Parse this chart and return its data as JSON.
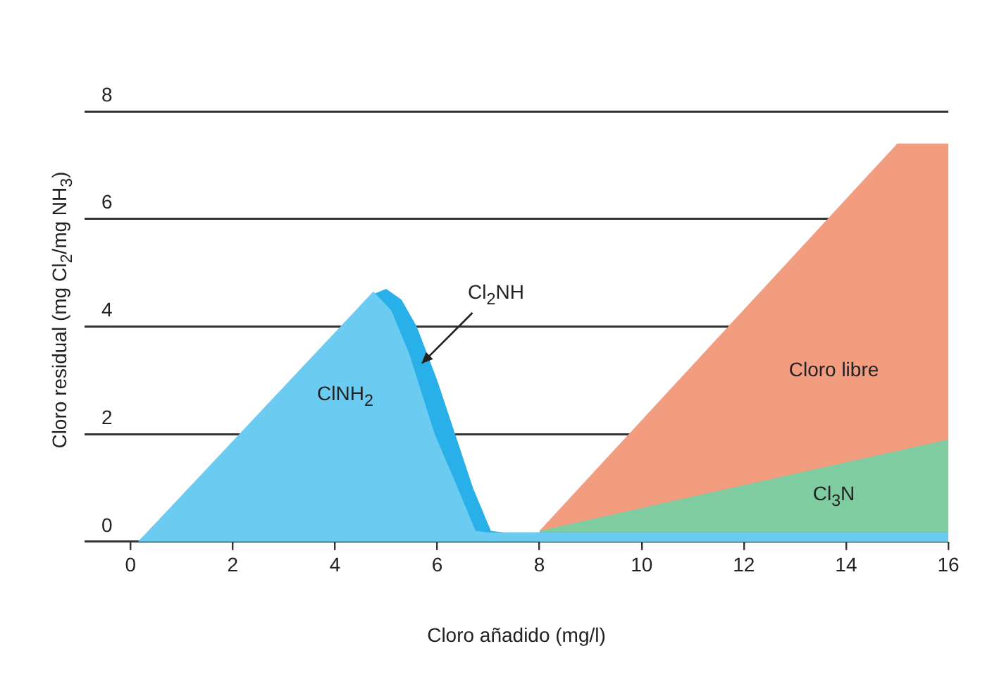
{
  "chart_data": {
    "type": "area",
    "xlabel": "Cloro añadido (mg/l)",
    "ylabel": "Cloro residual (mg Cl$_{2}$/mg NH$_{3}$)",
    "xlim": [
      -0.9,
      16
    ],
    "xticks": [
      0,
      2,
      4,
      6,
      8,
      10,
      12,
      14,
      16
    ],
    "ylim": [
      0,
      8
    ],
    "yticks": [
      0,
      2,
      4,
      6,
      8
    ],
    "grid": "y",
    "legend": false,
    "series": [
      {
        "name": "Cloro libre",
        "color": "#f29c80",
        "x": [
          8,
          15,
          16
        ],
        "values": [
          0.2,
          7.4,
          7.4
        ]
      },
      {
        "name": "Cl$_{3}$N",
        "color": "#7fcca0",
        "x": [
          8,
          16
        ],
        "values": [
          0.2,
          1.9
        ]
      },
      {
        "name": "Cl$_{2}$NH",
        "color": "#2ab0e8",
        "x": [
          0.15,
          4.75,
          5.0,
          5.3,
          5.6,
          6.0,
          6.35,
          6.7,
          7.05,
          7.3,
          16
        ],
        "values": [
          0,
          4.6,
          4.7,
          4.5,
          4.0,
          3.0,
          2.0,
          1.0,
          0.2,
          0.17,
          0.17
        ]
      },
      {
        "name": "ClNH$_{2}$",
        "color": "#6ccbf0",
        "x": [
          0.15,
          4.75,
          5.1,
          5.45,
          5.95,
          6.4,
          6.75,
          7.0,
          16
        ],
        "values": [
          0,
          4.65,
          4.3,
          3.5,
          2.0,
          1.0,
          0.2,
          0.17,
          0.17
        ]
      }
    ]
  }
}
